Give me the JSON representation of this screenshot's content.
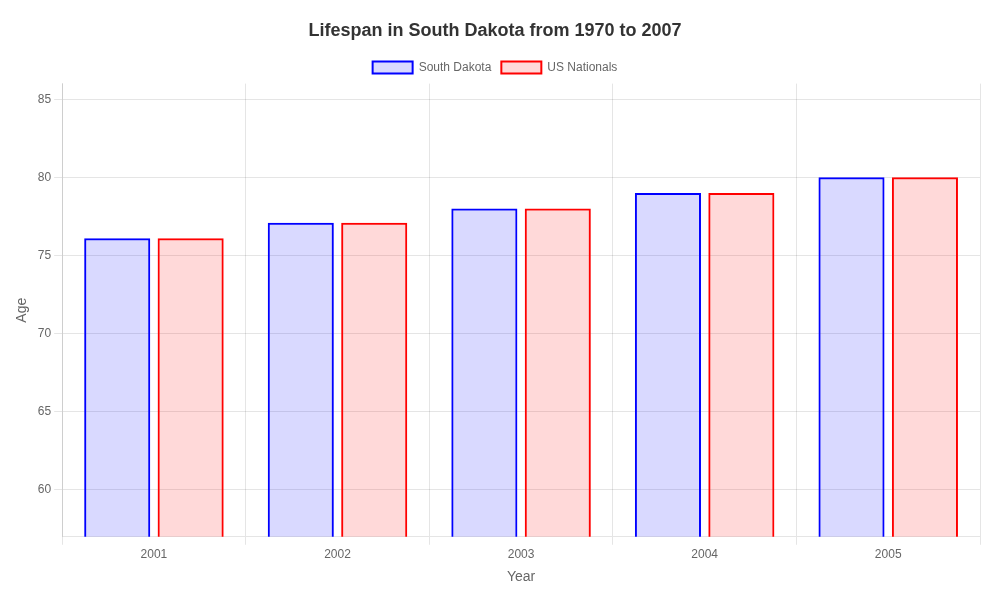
{
  "chart_data": {
    "type": "bar",
    "title": "Lifespan in South Dakota from 1970 to 2007",
    "xlabel": "Year",
    "ylabel": "Age",
    "categories": [
      "2001",
      "2002",
      "2003",
      "2004",
      "2005"
    ],
    "series": [
      {
        "name": "South Dakota",
        "color": "#0000ff",
        "values": [
          76.1,
          77.1,
          78.0,
          79.0,
          80.0
        ]
      },
      {
        "name": "US Nationals",
        "color": "#ff0000",
        "values": [
          76.1,
          77.1,
          78.0,
          79.0,
          80.0
        ]
      }
    ],
    "ylim": [
      57,
      86
    ],
    "yticks": [
      60,
      65,
      70,
      75,
      80,
      85
    ],
    "grid": true,
    "legend": "top"
  }
}
